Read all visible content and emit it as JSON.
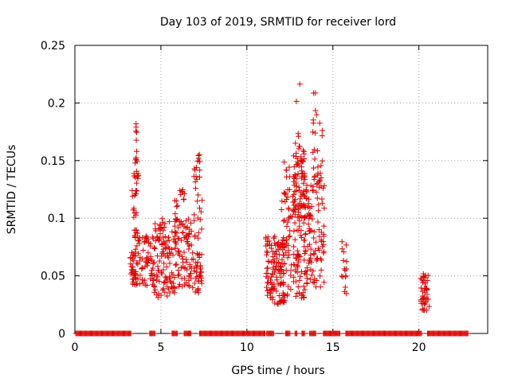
{
  "chart_data": {
    "type": "scatter",
    "title": "Day 103 of 2019, SRMTID for receiver lord",
    "xlabel": "GPS time / hours",
    "ylabel": "SRMTID / TECUs",
    "xlim": [
      0,
      24
    ],
    "ylim": [
      0,
      0.25
    ],
    "xticks": [
      0,
      5,
      10,
      15,
      20
    ],
    "yticks": [
      0,
      0.05,
      0.1,
      0.15,
      0.2,
      0.25
    ],
    "ytick_labels": [
      "0",
      "0.05",
      "0.1",
      "0.15",
      "0.2",
      "0.25"
    ],
    "grid": true,
    "marker": "+",
    "color": "#e00000",
    "zero_segments": [
      [
        0.05,
        3.25
      ],
      [
        4.35,
        4.65
      ],
      [
        5.65,
        5.95
      ],
      [
        6.35,
        6.75
      ],
      [
        7.25,
        11.1
      ],
      [
        11.15,
        11.6
      ],
      [
        12.25,
        12.55
      ],
      [
        12.8,
        12.95
      ],
      [
        13.2,
        13.4
      ],
      [
        13.65,
        14.05
      ],
      [
        14.45,
        15.45
      ],
      [
        15.75,
        20.2
      ],
      [
        20.5,
        22.9
      ]
    ],
    "clusters": [
      {
        "x": [
          3.2,
          3.5
        ],
        "n": 26,
        "y": [
          0.042,
          0.072
        ]
      },
      {
        "x": [
          3.3,
          3.7
        ],
        "n": 30,
        "y": [
          0.085,
          0.15
        ]
      },
      {
        "x": [
          3.5,
          3.6
        ],
        "n": 9,
        "y": [
          0.15,
          0.192
        ]
      },
      {
        "x": [
          3.5,
          4.6
        ],
        "n": 75,
        "y": [
          0.04,
          0.085
        ]
      },
      {
        "x": [
          4.6,
          5.9
        ],
        "n": 120,
        "y": [
          0.03,
          0.1
        ]
      },
      {
        "x": [
          5.8,
          6.0
        ],
        "n": 10,
        "y": [
          0.08,
          0.12
        ]
      },
      {
        "x": [
          6.0,
          6.8
        ],
        "n": 70,
        "y": [
          0.04,
          0.1
        ]
      },
      {
        "x": [
          6.1,
          6.4
        ],
        "n": 8,
        "y": [
          0.105,
          0.125
        ]
      },
      {
        "x": [
          6.8,
          7.4
        ],
        "n": 40,
        "y": [
          0.035,
          0.07
        ]
      },
      {
        "x": [
          6.9,
          7.4
        ],
        "n": 30,
        "y": [
          0.08,
          0.16
        ]
      },
      {
        "x": [
          11.1,
          12.2
        ],
        "n": 120,
        "y": [
          0.025,
          0.085
        ]
      },
      {
        "x": [
          12.0,
          13.4
        ],
        "n": 120,
        "y": [
          0.03,
          0.12
        ]
      },
      {
        "x": [
          12.1,
          12.5
        ],
        "n": 12,
        "y": [
          0.12,
          0.152
        ]
      },
      {
        "x": [
          12.7,
          13.4
        ],
        "n": 70,
        "y": [
          0.1,
          0.16
        ]
      },
      {
        "x": [
          12.8,
          13.1
        ],
        "n": 8,
        "y": [
          0.16,
          0.22
        ]
      },
      {
        "x": [
          13.3,
          14.5
        ],
        "n": 110,
        "y": [
          0.04,
          0.13
        ]
      },
      {
        "x": [
          13.8,
          14.4
        ],
        "n": 30,
        "y": [
          0.13,
          0.21
        ]
      },
      {
        "x": [
          15.5,
          15.8
        ],
        "n": 16,
        "y": [
          0.032,
          0.082
        ]
      },
      {
        "x": [
          20.1,
          20.6
        ],
        "n": 45,
        "y": [
          0.02,
          0.052
        ]
      }
    ]
  }
}
